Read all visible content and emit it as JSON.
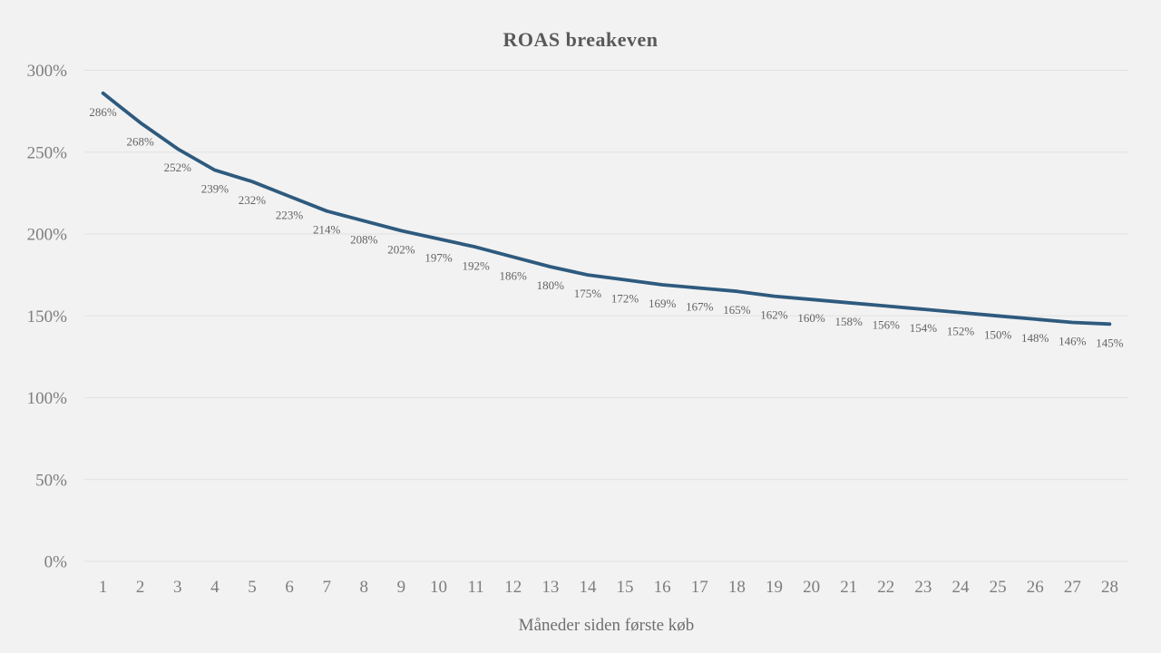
{
  "chart_data": {
    "type": "line",
    "title": "ROAS breakeven",
    "xlabel": "Måneder siden første køb",
    "ylabel": "",
    "categories": [
      1,
      2,
      3,
      4,
      5,
      6,
      7,
      8,
      9,
      10,
      11,
      12,
      13,
      14,
      15,
      16,
      17,
      18,
      19,
      20,
      21,
      22,
      23,
      24,
      25,
      26,
      27,
      28
    ],
    "x_tick_labels": [
      "1",
      "2",
      "3",
      "4",
      "5",
      "6",
      "7",
      "8",
      "9",
      "10",
      "11",
      "12",
      "13",
      "14",
      "15",
      "16",
      "17",
      "18",
      "19",
      "20",
      "21",
      "22",
      "23",
      "24",
      "25",
      "26",
      "27",
      "28"
    ],
    "values": [
      286,
      268,
      252,
      239,
      232,
      223,
      214,
      208,
      202,
      197,
      192,
      186,
      180,
      175,
      172,
      169,
      167,
      165,
      162,
      160,
      158,
      156,
      154,
      152,
      150,
      148,
      146,
      145
    ],
    "data_labels": [
      "286%",
      "268%",
      "252%",
      "239%",
      "232%",
      "223%",
      "214%",
      "208%",
      "202%",
      "197%",
      "192%",
      "186%",
      "180%",
      "175%",
      "172%",
      "169%",
      "167%",
      "165%",
      "162%",
      "160%",
      "158%",
      "156%",
      "154%",
      "152%",
      "150%",
      "148%",
      "146%",
      "145%"
    ],
    "ylim": [
      0,
      300
    ],
    "y_ticks": {
      "values": [
        0,
        50,
        100,
        150,
        200,
        250,
        300
      ],
      "labels": [
        "0%",
        "50%",
        "100%",
        "150%",
        "200%",
        "250%",
        "300%"
      ]
    },
    "grid": true,
    "legend": "none",
    "colors": {
      "background": "#f2f2f2",
      "gridline": "#e1e1e1",
      "line": "#2e5a7e",
      "tick_label": "#7d7d7d",
      "data_label": "#636363",
      "title": "#595959",
      "axis_title": "#6f6f6f"
    }
  }
}
